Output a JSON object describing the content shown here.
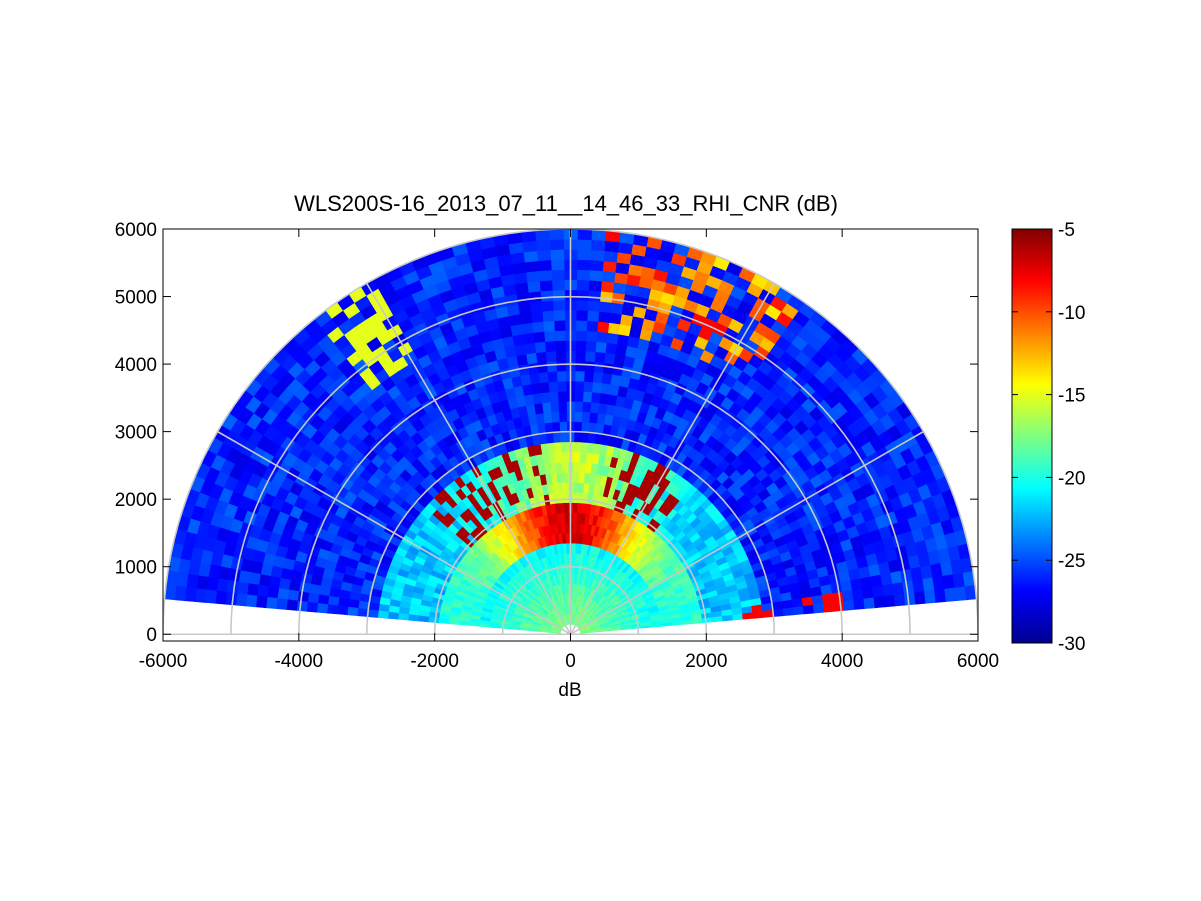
{
  "chart_data": {
    "type": "heatmap",
    "subtype": "polar-rhi-scan",
    "title": "WLS200S-16_2013_07_11__14_46_33_RHI_CNR (dB)",
    "xlabel": "dB",
    "ylabel": "",
    "xlim": [
      -6000,
      6000
    ],
    "ylim": [
      -100,
      6000
    ],
    "x_ticks": [
      "-6000",
      "-4000",
      "-2000",
      "0",
      "2000",
      "4000",
      "6000"
    ],
    "y_ticks": [
      "0",
      "1000",
      "2000",
      "3000",
      "4000",
      "5000",
      "6000"
    ],
    "max_range": 6000,
    "range_rings": [
      1000,
      2000,
      3000,
      4000,
      5000,
      6000
    ],
    "spokes_deg": [
      0,
      30,
      60,
      90,
      120,
      150,
      180
    ],
    "elevation_coverage_deg": [
      5,
      175
    ],
    "grid": true,
    "colorbar": {
      "min": -30,
      "max": -5,
      "ticks": [
        "-5",
        "-10",
        "-15",
        "-20",
        "-25",
        "-30"
      ],
      "colormap": "jet",
      "position": "right"
    },
    "features": [
      {
        "desc": "high-CNR layer",
        "range_m": [
          1500,
          2000
        ],
        "cnr_db": -9
      },
      {
        "desc": "boundary-layer band",
        "range_m": [
          800,
          1500
        ],
        "cnr_db": -17
      },
      {
        "desc": "scattered cloud returns",
        "range_m": [
          2000,
          2700
        ],
        "cnr_db": -6
      },
      {
        "desc": "upper layer returns",
        "range_m": [
          4500,
          5800
        ],
        "cnr_db": -11
      },
      {
        "desc": "background",
        "range_m": [
          2500,
          6000
        ],
        "cnr_db": -26
      }
    ]
  }
}
